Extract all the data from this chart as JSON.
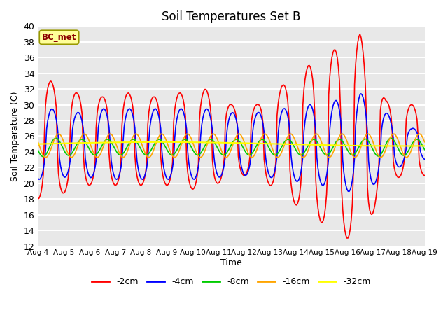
{
  "title": "Soil Temperatures Set B",
  "xlabel": "Time",
  "ylabel": "Soil Temperature (C)",
  "annotation": "BC_met",
  "ylim": [
    12,
    40
  ],
  "yticks": [
    12,
    14,
    16,
    18,
    20,
    22,
    24,
    26,
    28,
    30,
    32,
    34,
    36,
    38,
    40
  ],
  "x_labels": [
    "Aug 4",
    "Aug 5",
    "Aug 6",
    "Aug 7",
    "Aug 8",
    "Aug 9",
    "Aug 10",
    "Aug 11",
    "Aug 12",
    "Aug 13",
    "Aug 14",
    "Aug 15",
    "Aug 16",
    "Aug 17",
    "Aug 18",
    "Aug 19"
  ],
  "x_positions": [
    0,
    24,
    48,
    72,
    96,
    120,
    144,
    168,
    192,
    216,
    240,
    264,
    288,
    312,
    336,
    360
  ],
  "series": {
    "-2cm": {
      "color": "#FF0000",
      "linewidth": 1.2
    },
    "-4cm": {
      "color": "#0000FF",
      "linewidth": 1.2
    },
    "-8cm": {
      "color": "#00CC00",
      "linewidth": 1.2
    },
    "-16cm": {
      "color": "#FFA500",
      "linewidth": 1.2
    },
    "-32cm": {
      "color": "#FFFF00",
      "linewidth": 1.5
    }
  },
  "background_color": "#E8E8E8",
  "grid_color": "#FFFFFF",
  "n_days": 15,
  "base_2cm": 25.5,
  "base_4cm": 25.0,
  "base_8cm": 24.6,
  "base_16cm": 24.8,
  "base_32cm": 25.0,
  "amp_2cm": [
    7.5,
    6.0,
    5.5,
    6.0,
    5.5,
    6.0,
    6.5,
    4.5,
    4.5,
    7.0,
    9.5,
    11.5,
    13.5,
    5.0,
    4.5
  ],
  "amp_4cm": [
    4.5,
    4.0,
    4.5,
    4.5,
    4.5,
    4.5,
    4.5,
    4.0,
    4.0,
    4.5,
    5.0,
    5.5,
    6.5,
    4.0,
    2.0
  ],
  "amp_8cm": [
    1.2,
    1.0,
    1.0,
    1.0,
    1.0,
    1.0,
    1.0,
    1.0,
    1.0,
    1.0,
    1.0,
    1.0,
    1.0,
    1.2,
    1.0
  ],
  "amp_16cm": [
    1.5,
    1.5,
    1.5,
    1.5,
    1.5,
    1.5,
    1.5,
    1.5,
    1.5,
    1.5,
    1.5,
    1.5,
    1.5,
    1.5,
    1.5
  ],
  "amp_32cm": 0.25,
  "phase_2cm": -0.5,
  "phase_4cm": -0.6,
  "phase_8cm": -0.9,
  "phase_16cm": -1.1,
  "sharpness_2cm": 2.5,
  "figsize": [
    6.4,
    4.8
  ],
  "dpi": 100
}
